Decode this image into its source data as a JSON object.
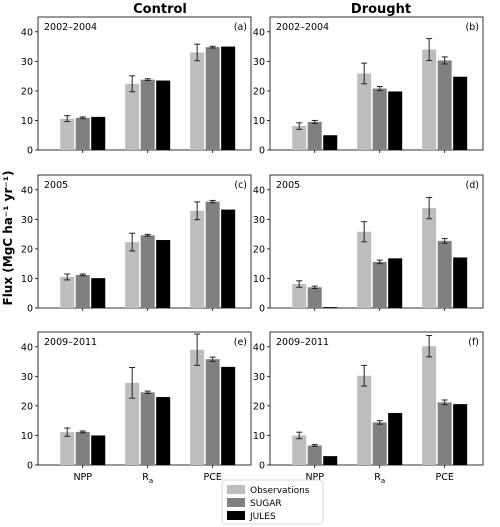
{
  "titles": {
    "left": "Control",
    "right": "Drought"
  },
  "ylabel": "Flux (MgC ha⁻¹ yr⁻¹)",
  "categories": [
    "NPP",
    "R",
    "PCE"
  ],
  "ra_subscript": "a",
  "legend": [
    {
      "name": "Observations",
      "color": "#bdbdbd"
    },
    {
      "name": "SUGAR",
      "color": "#808080"
    },
    {
      "name": "JULES",
      "color": "#000000"
    }
  ],
  "chart_data": [
    {
      "type": "bar",
      "id": "(a)",
      "period": "2002–2004",
      "column": "Control",
      "ylim": [
        0,
        45
      ],
      "yticks": [
        0,
        10,
        20,
        30,
        40
      ],
      "categories": [
        "NPP",
        "Ra",
        "PCE"
      ],
      "series": [
        {
          "name": "Observations",
          "values": [
            10.6,
            22.4,
            33.0
          ],
          "err": [
            1.0,
            2.7,
            2.8
          ]
        },
        {
          "name": "SUGAR",
          "values": [
            10.9,
            23.8,
            34.8
          ],
          "err": [
            0.3,
            0.3,
            0.3
          ]
        },
        {
          "name": "JULES",
          "values": [
            11.2,
            23.5,
            35.0
          ],
          "err": null
        }
      ]
    },
    {
      "type": "bar",
      "id": "(b)",
      "period": "2002–2004",
      "column": "Drought",
      "ylim": [
        0,
        45
      ],
      "yticks": [
        0,
        10,
        20,
        30,
        40
      ],
      "categories": [
        "NPP",
        "Ra",
        "PCE"
      ],
      "series": [
        {
          "name": "Observations",
          "values": [
            8.1,
            25.9,
            34.0
          ],
          "err": [
            1.1,
            3.5,
            3.7
          ]
        },
        {
          "name": "SUGAR",
          "values": [
            9.5,
            20.8,
            30.3
          ],
          "err": [
            0.5,
            0.7,
            1.2
          ]
        },
        {
          "name": "JULES",
          "values": [
            5.0,
            19.8,
            24.8
          ],
          "err": null
        }
      ]
    },
    {
      "type": "bar",
      "id": "(c)",
      "period": "2005",
      "column": "Control",
      "ylim": [
        0,
        45
      ],
      "yticks": [
        0,
        10,
        20,
        30,
        40
      ],
      "categories": [
        "NPP",
        "Ra",
        "PCE"
      ],
      "series": [
        {
          "name": "Observations",
          "values": [
            10.5,
            22.3,
            32.9
          ],
          "err": [
            1.0,
            3.0,
            3.0
          ]
        },
        {
          "name": "SUGAR",
          "values": [
            11.2,
            24.6,
            36.0
          ],
          "err": [
            0.3,
            0.3,
            0.4
          ]
        },
        {
          "name": "JULES",
          "values": [
            10.1,
            23.0,
            33.3
          ],
          "err": null
        }
      ]
    },
    {
      "type": "bar",
      "id": "(d)",
      "period": "2005",
      "column": "Drought",
      "ylim": [
        0,
        45
      ],
      "yticks": [
        0,
        10,
        20,
        30,
        40
      ],
      "categories": [
        "NPP",
        "Ra",
        "PCE"
      ],
      "series": [
        {
          "name": "Observations",
          "values": [
            8.1,
            25.8,
            33.8
          ],
          "err": [
            1.1,
            3.4,
            3.6
          ]
        },
        {
          "name": "SUGAR",
          "values": [
            7.0,
            15.6,
            22.7
          ],
          "err": [
            0.4,
            0.6,
            0.8
          ]
        },
        {
          "name": "JULES",
          "values": [
            0.3,
            16.8,
            17.1
          ],
          "err": null
        }
      ]
    },
    {
      "type": "bar",
      "id": "(e)",
      "period": "2009–2011",
      "column": "Control",
      "ylim": [
        0,
        45
      ],
      "yticks": [
        0,
        10,
        20,
        30,
        40
      ],
      "categories": [
        "NPP",
        "Ra",
        "PCE"
      ],
      "series": [
        {
          "name": "Observations",
          "values": [
            11.1,
            27.8,
            39.0
          ],
          "err": [
            1.4,
            5.2,
            5.3
          ]
        },
        {
          "name": "SUGAR",
          "values": [
            11.2,
            24.6,
            35.8
          ],
          "err": [
            0.3,
            0.4,
            0.7
          ]
        },
        {
          "name": "JULES",
          "values": [
            10.0,
            23.0,
            33.2
          ],
          "err": null
        }
      ]
    },
    {
      "type": "bar",
      "id": "(f)",
      "period": "2009–2011",
      "column": "Drought",
      "ylim": [
        0,
        45
      ],
      "yticks": [
        0,
        10,
        20,
        30,
        40
      ],
      "categories": [
        "NPP",
        "Ra",
        "PCE"
      ],
      "series": [
        {
          "name": "Observations",
          "values": [
            10.0,
            30.2,
            40.2
          ],
          "err": [
            1.1,
            3.5,
            3.6
          ]
        },
        {
          "name": "SUGAR",
          "values": [
            6.6,
            14.4,
            21.2
          ],
          "err": [
            0.3,
            0.6,
            0.8
          ]
        },
        {
          "name": "JULES",
          "values": [
            3.0,
            17.6,
            20.6
          ],
          "err": null
        }
      ]
    }
  ]
}
